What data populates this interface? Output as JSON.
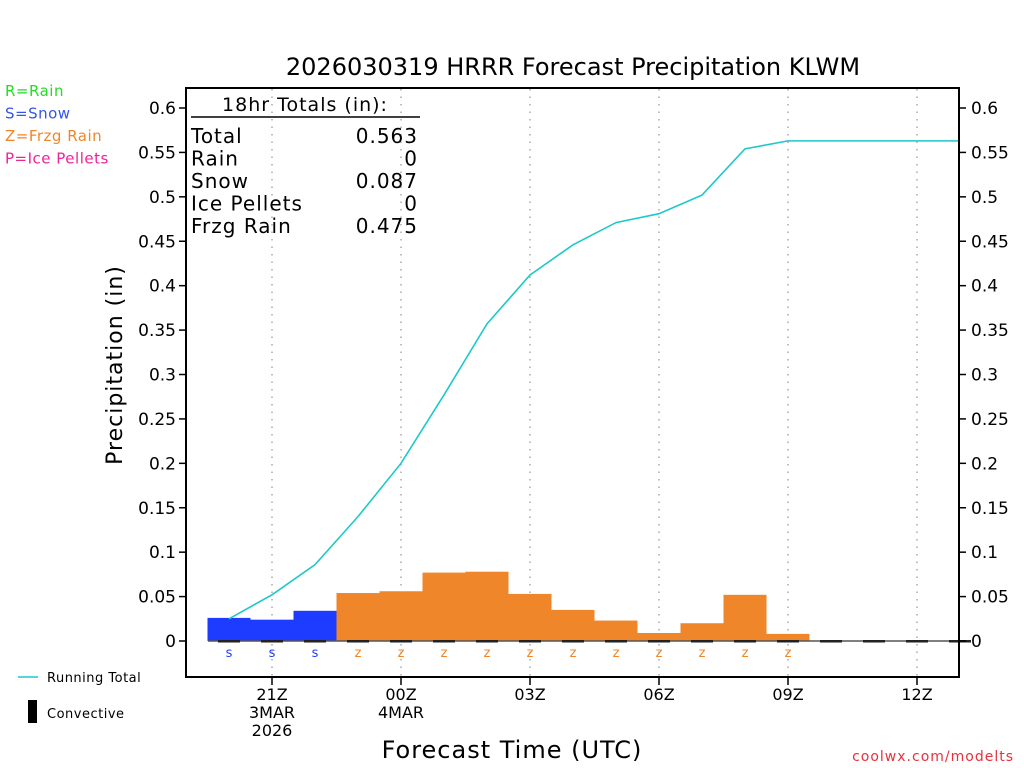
{
  "chart_data": {
    "type": "bar",
    "title": "2026030319 HRRR Forecast Precipitation KLWM",
    "xlabel": "Forecast Time (UTC)",
    "ylabel": "Precipitation (in)",
    "ylim": [
      0,
      0.6
    ],
    "yticks": [
      0,
      0.05,
      0.1,
      0.15,
      0.2,
      0.25,
      0.3,
      0.35,
      0.4,
      0.45,
      0.5,
      0.55,
      0.6
    ],
    "ytick_labels": [
      "0",
      "0.05",
      "0.1",
      "0.15",
      "0.2",
      "0.25",
      "0.3",
      "0.35",
      "0.4",
      "0.45",
      "0.5",
      "0.55",
      "0.6"
    ],
    "x_hours": [
      "20Z",
      "21Z",
      "22Z",
      "23Z",
      "00Z",
      "01Z",
      "02Z",
      "03Z",
      "04Z",
      "05Z",
      "06Z",
      "07Z",
      "08Z",
      "09Z",
      "10Z",
      "11Z",
      "12Z",
      "13Z"
    ],
    "xticks": [
      {
        "hour_index": 1,
        "lines": [
          "21Z",
          "3MAR",
          "2026"
        ]
      },
      {
        "hour_index": 4,
        "lines": [
          "00Z",
          "4MAR"
        ]
      },
      {
        "hour_index": 7,
        "lines": [
          "03Z"
        ]
      },
      {
        "hour_index": 10,
        "lines": [
          "06Z"
        ]
      },
      {
        "hour_index": 13,
        "lines": [
          "09Z"
        ]
      },
      {
        "hour_index": 16,
        "lines": [
          "12Z"
        ]
      }
    ],
    "grid": "vertical dotted at tick hours",
    "series": [
      {
        "name": "Hourly Precipitation",
        "kind": "bar",
        "values": [
          0.026,
          0.024,
          0.034,
          0.054,
          0.056,
          0.077,
          0.078,
          0.053,
          0.035,
          0.023,
          0.009,
          0.02,
          0.052,
          0.008,
          0,
          0,
          0,
          0
        ],
        "ptype": [
          "S",
          "S",
          "S",
          "Z",
          "Z",
          "Z",
          "Z",
          "Z",
          "Z",
          "Z",
          "Z",
          "Z",
          "Z",
          "Z",
          "",
          "",
          "",
          ""
        ]
      },
      {
        "name": "Running Total",
        "kind": "line",
        "color": "#1ec8c8",
        "values": [
          0.025,
          0.052,
          0.086,
          0.14,
          0.2,
          0.277,
          0.357,
          0.412,
          0.446,
          0.471,
          0.481,
          0.502,
          0.554,
          0.563,
          0.563,
          0.563,
          0.563,
          0.563
        ]
      }
    ],
    "ptype_colors": {
      "S": "#1e3cff",
      "Z": "#f0862a",
      "R": "#22dd22",
      "P": "#ee2299"
    },
    "ptype_legend": [
      {
        "text": "R=Rain",
        "color": "#22dd22"
      },
      {
        "text": "S=Snow",
        "color": "#3355ee"
      },
      {
        "text": "Z=Frzg Rain",
        "color": "#f0862a"
      },
      {
        "text": "P=Ice Pellets",
        "color": "#ee2299"
      }
    ],
    "legend": [
      {
        "label": "Running Total",
        "symbol": "line",
        "color": "#1ec8c8"
      },
      {
        "label": "Convective",
        "symbol": "bar",
        "color": "#000000"
      }
    ],
    "totals_box": {
      "heading": "18hr Totals (in):",
      "rows": [
        {
          "label": "Total",
          "value": "0.563"
        },
        {
          "label": "Rain",
          "value": "0"
        },
        {
          "label": "Snow",
          "value": "0.087"
        },
        {
          "label": "Ice Pellets",
          "value": "0"
        },
        {
          "label": "Frzg Rain",
          "value": "0.475"
        }
      ]
    },
    "credit": "coolwx.com/modelts"
  }
}
